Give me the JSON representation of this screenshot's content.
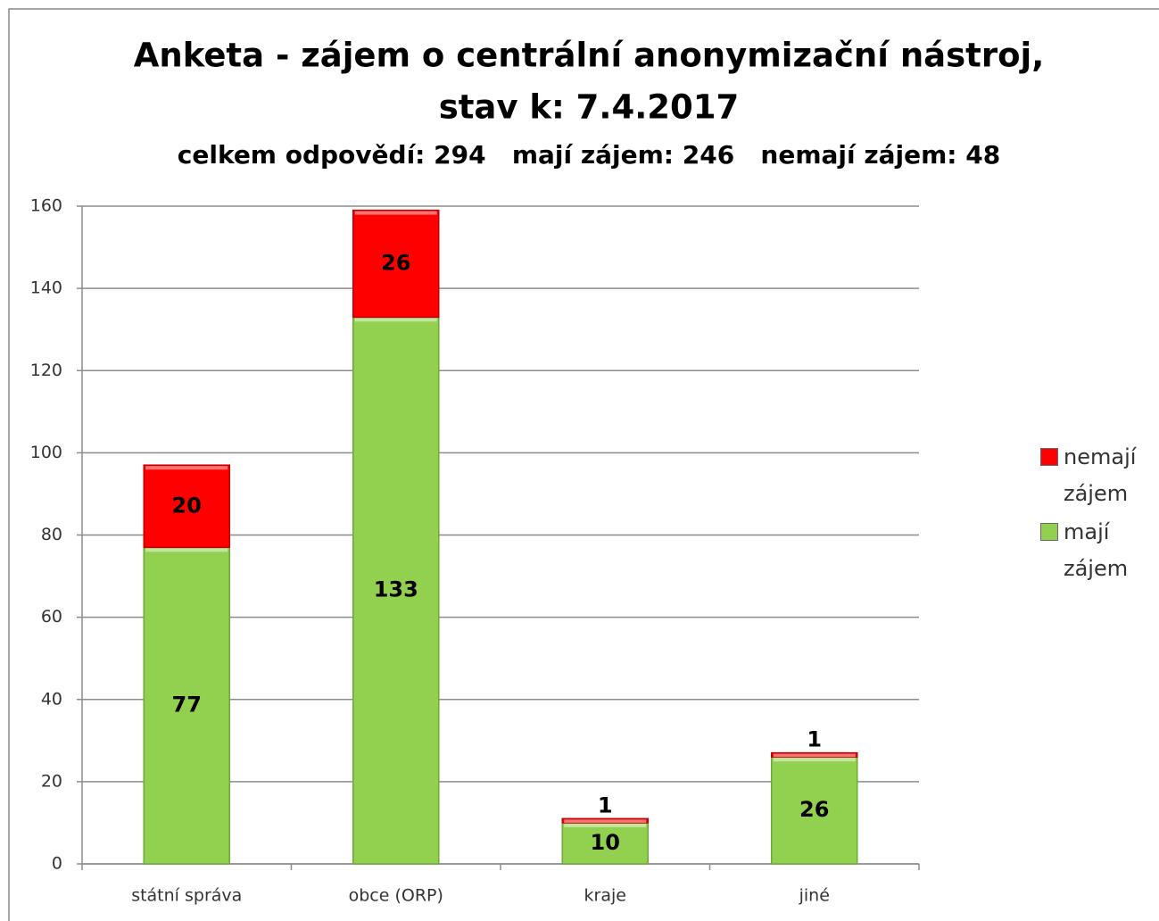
{
  "chart_data": {
    "type": "stacked_bar",
    "title": [
      "Anketa - zájem o centrální anonymizační nástroj,",
      "stav k: 7.4.2017"
    ],
    "subtitle": "celkem odpovědí: 294   mají zájem: 246   nemají zájem: 48",
    "categories": [
      "státní správa",
      "obce (ORP)",
      "kraje",
      "jiné"
    ],
    "series": [
      {
        "name": "mají zájem",
        "color": "#92d050",
        "values": [
          77,
          133,
          10,
          26
        ]
      },
      {
        "name": "nemají zájem",
        "color": "#ff0000",
        "values": [
          20,
          26,
          1,
          1
        ]
      }
    ],
    "ylim": [
      0,
      160
    ],
    "yticks": [
      0,
      20,
      40,
      60,
      80,
      100,
      120,
      140,
      160
    ],
    "grid": true,
    "legend": "right"
  }
}
